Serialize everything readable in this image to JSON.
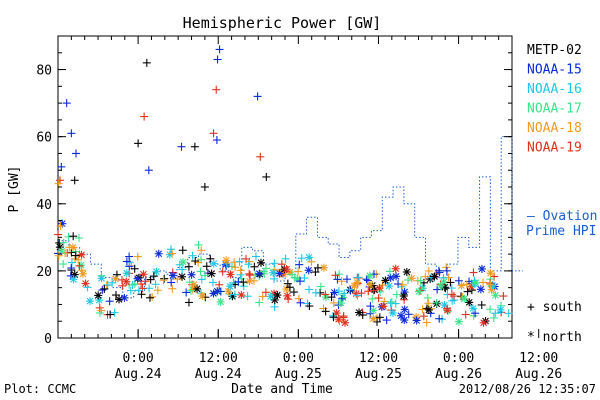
{
  "chart_data": {
    "type": "scatter",
    "title": "Hemispheric Power [GW]",
    "xlabel": "Date and Time",
    "ylabel": "P [GW]",
    "ylim": [
      0,
      90
    ],
    "xlim_hours_from_aug23_12utc": [
      0,
      68
    ],
    "y_ticks": [
      0,
      20,
      40,
      60,
      80
    ],
    "x_ticks": [
      {
        "time": "0:00",
        "date": "Aug.24"
      },
      {
        "time": "12:00",
        "date": "Aug.24"
      },
      {
        "time": "0:00",
        "date": "Aug.25"
      },
      {
        "time": "12:00",
        "date": "Aug.25"
      },
      {
        "time": "0:00",
        "date": "Aug.26"
      },
      {
        "time": "12:00",
        "date": "Aug.26"
      }
    ],
    "x_tick_hours": [
      12,
      24,
      36,
      48,
      60,
      72
    ],
    "legend": [
      {
        "name": "METP-02",
        "color": "#000000"
      },
      {
        "name": "NOAA-15",
        "color": "#0a2ad8"
      },
      {
        "name": "NOAA-16",
        "color": "#1ec8e6"
      },
      {
        "name": "NOAA-17",
        "color": "#3ce38a"
      },
      {
        "name": "NOAA-18",
        "color": "#f29a1e"
      },
      {
        "name": "NOAA-19",
        "color": "#e0301e"
      }
    ],
    "ovation_label": [
      "— Ovation",
      "Prime HPI"
    ],
    "ovation_color": "#1a5fd0",
    "symbol_legend": [
      {
        "symbol": "+",
        "label": "south"
      },
      {
        "symbol": "*",
        "label": "north"
      }
    ],
    "highlight_points": [
      {
        "series": "NOAA-15",
        "x": 1.3,
        "y": 70
      },
      {
        "series": "NOAA-15",
        "x": 2.0,
        "y": 61
      },
      {
        "series": "NOAA-15",
        "x": 2.7,
        "y": 55
      },
      {
        "series": "NOAA-15",
        "x": 0.5,
        "y": 51
      },
      {
        "series": "METP-02",
        "x": 13.3,
        "y": 82
      },
      {
        "series": "METP-02",
        "x": 12.0,
        "y": 58
      },
      {
        "series": "NOAA-19",
        "x": 12.9,
        "y": 66
      },
      {
        "series": "NOAA-15",
        "x": 13.6,
        "y": 50
      },
      {
        "series": "NOAA-15",
        "x": 18.5,
        "y": 57
      },
      {
        "series": "METP-02",
        "x": 20.5,
        "y": 57
      },
      {
        "series": "NOAA-15",
        "x": 24.2,
        "y": 86
      },
      {
        "series": "NOAA-15",
        "x": 23.9,
        "y": 83
      },
      {
        "series": "NOAA-19",
        "x": 23.7,
        "y": 74
      },
      {
        "series": "NOAA-19",
        "x": 23.3,
        "y": 61
      },
      {
        "series": "NOAA-15",
        "x": 23.8,
        "y": 59
      },
      {
        "series": "NOAA-15",
        "x": 29.9,
        "y": 72
      },
      {
        "series": "NOAA-19",
        "x": 30.3,
        "y": 54
      },
      {
        "series": "METP-02",
        "x": 31.2,
        "y": 48
      },
      {
        "series": "METP-02",
        "x": 22.0,
        "y": 45
      },
      {
        "series": "NOAA-19",
        "x": 0.3,
        "y": 47
      },
      {
        "series": "NOAA-18",
        "x": 0.1,
        "y": 46
      },
      {
        "series": "METP-02",
        "x": 2.5,
        "y": 47
      }
    ],
    "ovation_steps": [
      [
        0,
        29
      ],
      [
        1,
        27
      ],
      [
        2,
        25
      ],
      [
        3,
        22
      ],
      [
        4,
        18
      ],
      [
        5,
        15
      ],
      [
        6,
        12
      ],
      [
        7,
        14
      ],
      [
        8,
        18
      ],
      [
        9,
        20
      ],
      [
        10,
        19
      ],
      [
        11,
        21
      ],
      [
        12,
        24
      ],
      [
        13,
        25
      ],
      [
        14,
        22
      ],
      [
        15,
        20
      ],
      [
        16,
        18
      ],
      [
        17,
        27
      ],
      [
        18,
        26
      ],
      [
        19,
        22
      ],
      [
        20,
        17
      ],
      [
        21,
        19
      ],
      [
        22,
        31
      ],
      [
        23,
        36
      ],
      [
        24,
        30
      ],
      [
        25,
        28
      ],
      [
        26,
        24
      ],
      [
        27,
        26
      ],
      [
        28,
        30
      ],
      [
        29,
        32
      ],
      [
        30,
        42
      ],
      [
        31,
        45
      ],
      [
        32,
        40
      ],
      [
        33,
        30
      ],
      [
        34,
        22
      ],
      [
        35,
        18
      ],
      [
        36,
        22
      ],
      [
        37,
        30
      ],
      [
        38,
        27
      ],
      [
        39,
        48
      ],
      [
        40,
        20
      ],
      [
        41,
        60
      ],
      [
        42,
        20
      ]
    ],
    "footer_left": "Plot: CCMC",
    "footer_right": "2012/08/26 12:35:07"
  }
}
